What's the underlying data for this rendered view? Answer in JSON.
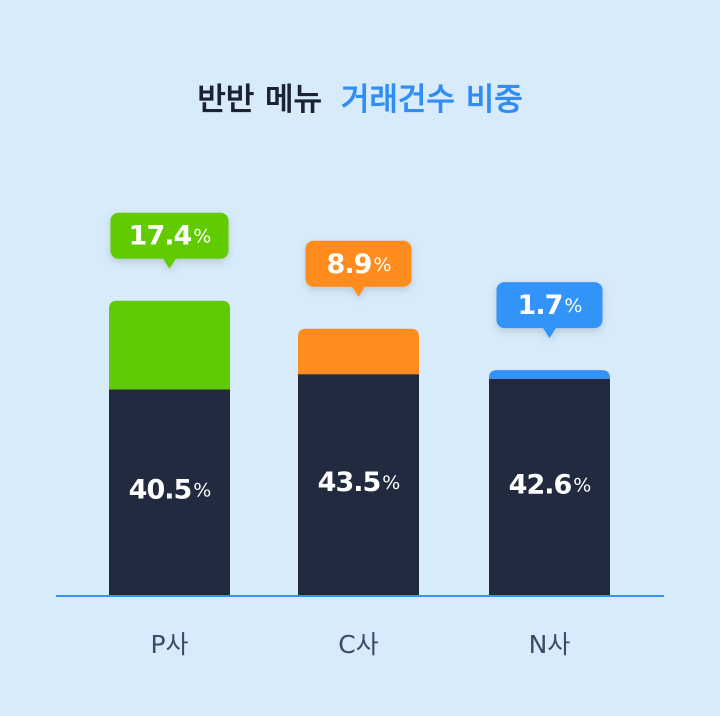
{
  "chart_data": {
    "type": "stacked_bar",
    "title": "반반 메뉴",
    "title_highlight": "거래건수 비중",
    "categories": [
      "P사",
      "C사",
      "N사"
    ],
    "series": [
      {
        "color": "#212a3e",
        "values": [
          40.5,
          43.5,
          42.6
        ],
        "value_labels": [
          "40.5%",
          "43.5%",
          "42.6%"
        ]
      },
      {
        "colors": [
          "#5ecb05",
          "#ff8c1e",
          "#3393f8"
        ],
        "values": [
          17.4,
          8.9,
          1.7
        ],
        "value_labels": [
          "17.4%",
          "8.9%",
          "1.7%"
        ]
      }
    ],
    "ylim": [
      0,
      100
    ],
    "axis_color": "#3393f8"
  }
}
